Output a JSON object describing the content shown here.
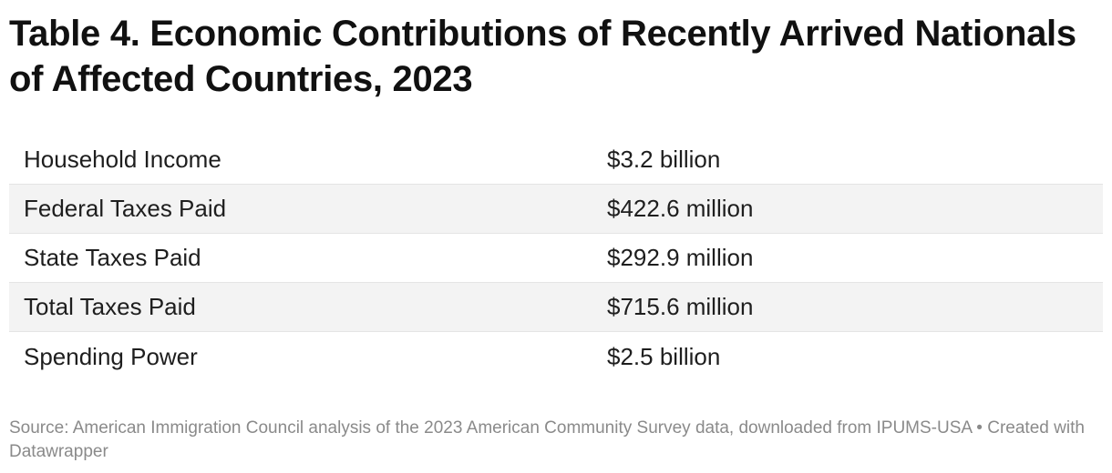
{
  "chart_data": {
    "type": "table",
    "title": "Table 4. Economic Contributions of Recently Arrived Nationals of Affected Countries, 2023",
    "rows": [
      {
        "label": "Household Income",
        "value": "$3.2 billion"
      },
      {
        "label": "Federal Taxes Paid",
        "value": "$422.6 million"
      },
      {
        "label": "State Taxes Paid",
        "value": "$292.9 million"
      },
      {
        "label": "Total Taxes Paid",
        "value": "$715.6 million"
      },
      {
        "label": "Spending Power",
        "value": "$2.5 billion"
      }
    ],
    "source": "Source: American Immigration Council analysis of the 2023 American Community Survey data, downloaded from IPUMS-USA",
    "separator": " • ",
    "credit": "Created with Datawrapper"
  },
  "colors": {
    "shaded_row": "#f3f3f3",
    "divider": "#e4e4e4",
    "notes_text": "#8a8a8a"
  }
}
